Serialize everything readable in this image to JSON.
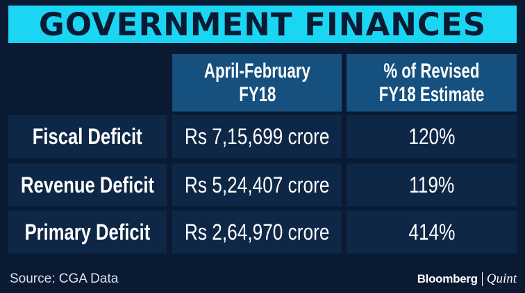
{
  "title": "GOVERNMENT FINANCES",
  "table": {
    "headers": [
      "April-February FY18",
      "% of Revised FY18 Estimate"
    ],
    "header_lines": [
      [
        "April-February",
        "FY18"
      ],
      [
        "% of Revised",
        "FY18 Estimate"
      ]
    ],
    "rows": [
      {
        "label": "Fiscal Deficit",
        "amount": "Rs 7,15,699 crore",
        "percent": "120%"
      },
      {
        "label": "Revenue Deficit",
        "amount": "Rs 5,24,407 crore",
        "percent": "119%"
      },
      {
        "label": "Primary Deficit",
        "amount": "Rs 2,64,970 crore",
        "percent": "414%"
      }
    ]
  },
  "footer": {
    "source": "Source: CGA Data",
    "brand_primary": "Bloomberg",
    "brand_secondary": "Quint"
  },
  "colors": {
    "background": "#0b1a33",
    "title_bar": "#1ad6f2",
    "header_cell": "#16507e",
    "row_cell": "#0e2746"
  }
}
